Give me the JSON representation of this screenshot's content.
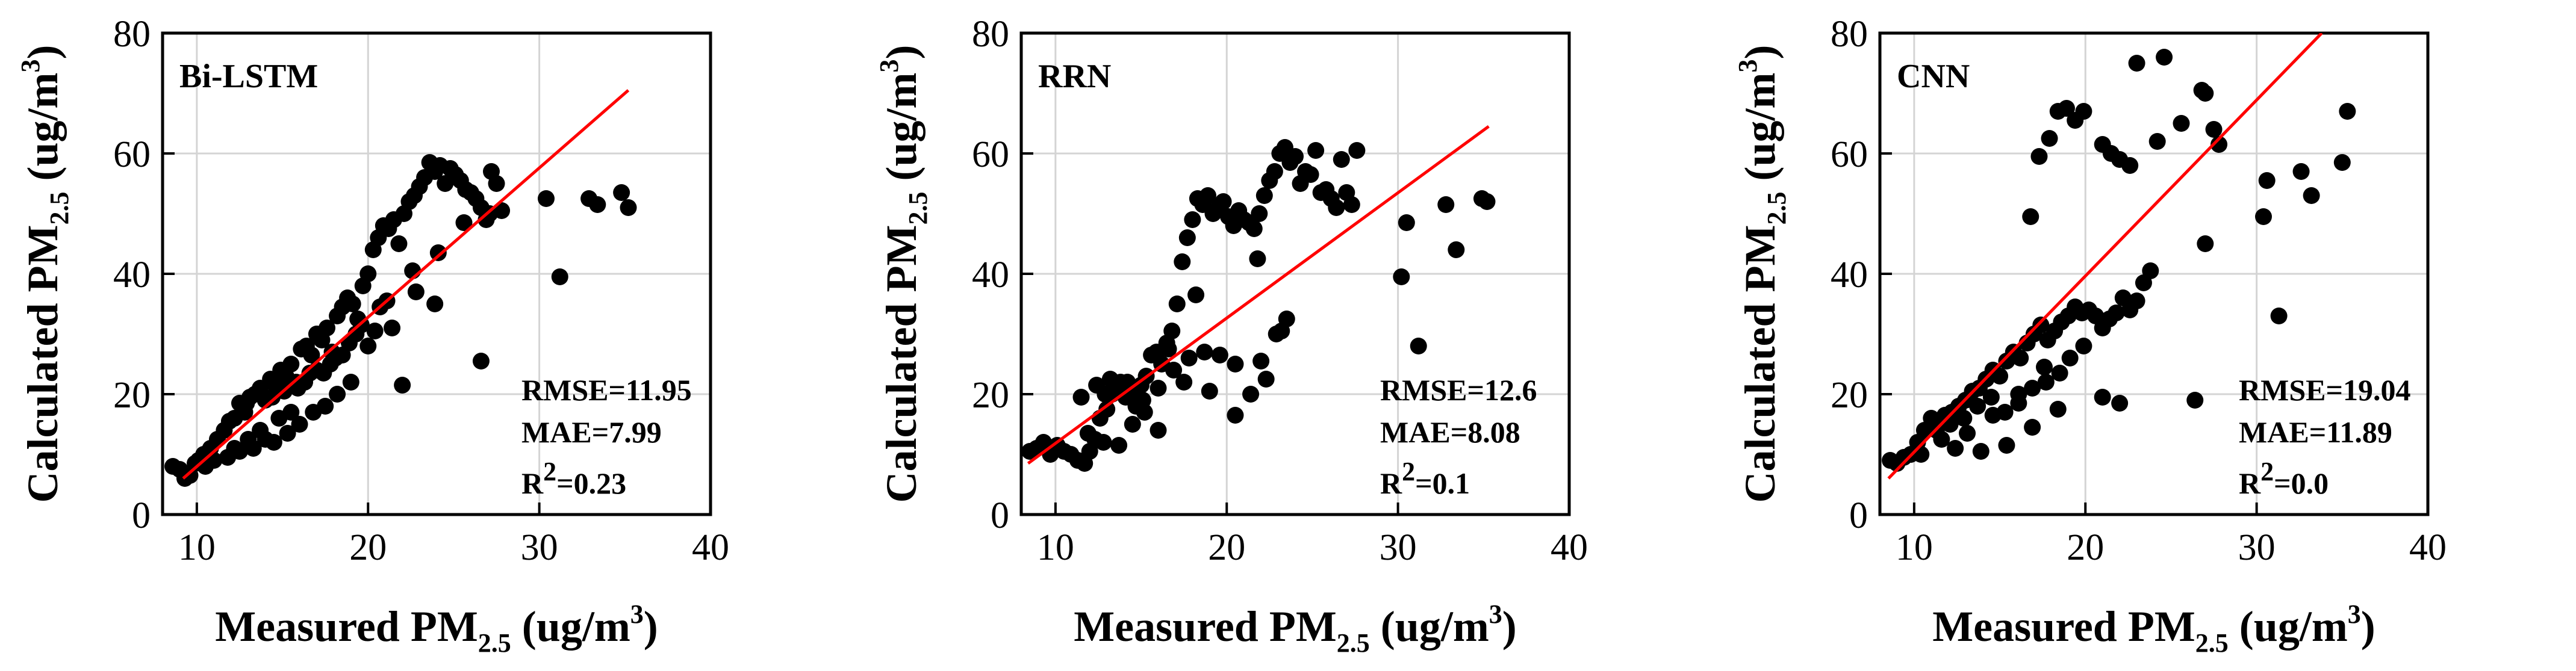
{
  "figure": {
    "accent_color": "#ff0000",
    "point_color": "#000000"
  },
  "chart_data": [
    {
      "type": "scatter",
      "title": "Bi-LSTM",
      "xlabel": {
        "main": "Measured PM",
        "sub": "2.5",
        "unit_pre": " (ug/m",
        "unit_sup": "3",
        "unit_post": ")"
      },
      "ylabel": {
        "main": "Calculated PM",
        "sub": "2.5",
        "unit_pre": " (ug/m",
        "unit_sup": "3",
        "unit_post": ")"
      },
      "xlim": [
        8,
        40
      ],
      "ylim": [
        0,
        80
      ],
      "xticks": [
        "10",
        "20",
        "30",
        "40"
      ],
      "yticks": [
        "0",
        "20",
        "40",
        "60",
        "80"
      ],
      "grid": true,
      "stats": {
        "rmse": "RMSE=11.95",
        "mae": "MAE=7.99",
        "r2_pre": "R",
        "r2_sup": "2",
        "r2_post": "=0.23"
      },
      "fit_line": {
        "x": [
          9.2,
          35.2
        ],
        "y": [
          6,
          70.5
        ]
      },
      "x": [
        8.6,
        9.0,
        9.3,
        9.6,
        9.9,
        10.1,
        10.4,
        10.8,
        11.2,
        11.6,
        11.9,
        12.2,
        12.5,
        12.8,
        13.1,
        13.4,
        13.7,
        14.0,
        14.3,
        14.6,
        14.9,
        15.2,
        15.5,
        15.8,
        16.1,
        16.4,
        16.7,
        17.0,
        17.3,
        17.6,
        17.9,
        18.2,
        18.5,
        18.8,
        19.1,
        19.4,
        19.7,
        20.0,
        20.3,
        20.6,
        20.9,
        21.2,
        21.5,
        21.8,
        22.1,
        22.4,
        22.7,
        23.0,
        23.3,
        23.6,
        23.9,
        24.2,
        24.5,
        24.8,
        25.1,
        25.4,
        25.7,
        26.0,
        26.3,
        26.6,
        26.9,
        27.2,
        27.5,
        27.8,
        30.4,
        31.2,
        32.9,
        33.4,
        34.8,
        35.2,
        22.0,
        23.9,
        26.6,
        12.2,
        13.0,
        13.7,
        14.5,
        15.3,
        16.0,
        16.8,
        17.5,
        18.2,
        19.0,
        11.0,
        12.5,
        14.0,
        15.5,
        17.0,
        18.5,
        20.0,
        21.4,
        22.8,
        10.5,
        11.8,
        13.3,
        14.8,
        16.3,
        17.8,
        19.3,
        20.7,
        15.1,
        16.6,
        18.1,
        19.6,
        21.1,
        22.6,
        24.1,
        25.6,
        27.1,
        12.9,
        14.4,
        15.9,
        17.4,
        18.9,
        20.4
      ],
      "y": [
        8.0,
        7.5,
        6.0,
        6.5,
        8.5,
        9.0,
        10.0,
        11.0,
        12.5,
        14.0,
        15.5,
        16.0,
        18.5,
        17.0,
        19.5,
        20.0,
        21.0,
        19.0,
        22.5,
        21.5,
        24.0,
        23.0,
        25.0,
        22.0,
        27.5,
        28.0,
        26.5,
        30.0,
        29.0,
        31.0,
        27.0,
        33.0,
        34.5,
        36.0,
        35.0,
        32.5,
        38.0,
        40.0,
        44.0,
        46.0,
        48.0,
        47.5,
        49.0,
        45.0,
        50.0,
        52.0,
        53.0,
        54.5,
        56.0,
        58.5,
        57.0,
        58.0,
        55.0,
        57.5,
        56.5,
        55.5,
        54.0,
        53.5,
        52.5,
        51.0,
        49.0,
        57.0,
        55.0,
        50.5,
        52.5,
        39.5,
        52.5,
        51.5,
        53.5,
        51.0,
        21.5,
        35.0,
        25.5,
        11.0,
        12.5,
        14.0,
        12.0,
        13.5,
        15.0,
        17.0,
        18.0,
        20.0,
        22.0,
        9.0,
        10.5,
        12.5,
        17.0,
        24.0,
        26.5,
        28.0,
        31.0,
        37.0,
        8.0,
        9.5,
        11.0,
        16.0,
        22.0,
        25.0,
        30.0,
        34.5,
        20.5,
        23.5,
        26.0,
        31.5,
        35.5,
        40.5,
        43.5,
        48.5,
        50.0,
        18.5,
        19.5,
        21.0,
        23.5,
        28.5,
        30.5
      ]
    },
    {
      "type": "scatter",
      "title": "RRN",
      "xlabel": {
        "main": "Measured PM",
        "sub": "2.5",
        "unit_pre": " (ug/m",
        "unit_sup": "3",
        "unit_post": ")"
      },
      "ylabel": {
        "main": "Calculated PM",
        "sub": "2.5",
        "unit_pre": " (ug/m",
        "unit_sup": "3",
        "unit_post": ")"
      },
      "xlim": [
        8,
        40
      ],
      "ylim": [
        0,
        80
      ],
      "xticks": [
        "10",
        "20",
        "30",
        "40"
      ],
      "yticks": [
        "0",
        "20",
        "40",
        "60",
        "80"
      ],
      "grid": true,
      "stats": {
        "rmse": "RMSE=12.6",
        "mae": "MAE=8.08",
        "r2_pre": "R",
        "r2_sup": "2",
        "r2_post": "=0.1"
      },
      "fit_line": {
        "x": [
          8.4,
          35.3
        ],
        "y": [
          8.5,
          64.5
        ]
      },
      "x": [
        8.5,
        8.9,
        9.3,
        9.7,
        10.1,
        10.5,
        10.9,
        11.3,
        11.7,
        12.0,
        12.3,
        12.6,
        12.9,
        13.2,
        13.5,
        13.8,
        14.1,
        14.4,
        14.7,
        15.0,
        15.3,
        15.6,
        15.9,
        16.2,
        16.5,
        16.8,
        17.1,
        17.4,
        17.7,
        18.0,
        18.3,
        18.6,
        18.9,
        19.2,
        19.5,
        19.8,
        20.1,
        20.4,
        20.7,
        21.0,
        21.3,
        21.6,
        21.9,
        22.2,
        22.5,
        22.8,
        23.1,
        23.4,
        23.7,
        24.0,
        24.3,
        24.6,
        24.9,
        25.2,
        25.5,
        25.8,
        26.1,
        26.4,
        26.7,
        27.0,
        27.3,
        27.6,
        30.2,
        30.5,
        31.2,
        32.8,
        33.4,
        34.9,
        35.2,
        11.5,
        12.4,
        13.3,
        14.2,
        15.1,
        16.0,
        16.9,
        17.8,
        18.7,
        19.6,
        20.5,
        21.4,
        22.3,
        23.2,
        13.0,
        14.5,
        16.0,
        17.5,
        19.0,
        20.5,
        22.0,
        23.5,
        11.9,
        12.8,
        13.7,
        15.2,
        16.6,
        18.2,
        21.8,
        22.9
      ],
      "y": [
        10.5,
        11.0,
        12.0,
        10.0,
        11.5,
        10.5,
        10.0,
        9.0,
        8.5,
        10.5,
        12.5,
        16.0,
        20.0,
        22.5,
        21.0,
        22.0,
        19.5,
        20.5,
        18.0,
        21.5,
        23.0,
        26.5,
        27.0,
        25.0,
        28.5,
        30.5,
        35.0,
        42.0,
        46.0,
        49.0,
        52.5,
        51.5,
        53.0,
        50.0,
        51.0,
        52.0,
        49.5,
        48.0,
        50.5,
        49.0,
        48.5,
        47.5,
        50.0,
        53.0,
        55.5,
        57.0,
        60.0,
        61.0,
        58.5,
        59.5,
        55.0,
        57.0,
        56.5,
        60.5,
        53.5,
        54.0,
        52.5,
        51.0,
        59.0,
        53.5,
        51.5,
        60.5,
        39.5,
        48.5,
        28.0,
        51.5,
        44.0,
        52.5,
        52.0,
        19.5,
        21.5,
        20.0,
        22.0,
        19.0,
        21.0,
        24.0,
        26.0,
        27.0,
        26.5,
        25.0,
        20.0,
        22.5,
        30.5,
        17.5,
        15.0,
        14.0,
        22.0,
        20.5,
        16.5,
        25.5,
        32.5,
        13.5,
        12.0,
        11.5,
        17.0,
        27.5,
        36.5,
        42.5,
        30.0
      ]
    },
    {
      "type": "scatter",
      "title": "CNN",
      "xlabel": {
        "main": "Measured PM",
        "sub": "2.5",
        "unit_pre": " (ug/m",
        "unit_sup": "3",
        "unit_post": ")"
      },
      "ylabel": {
        "main": "Calculated PM",
        "sub": "2.5",
        "unit_pre": " (ug/m",
        "unit_sup": "3",
        "unit_post": ")"
      },
      "xlim": [
        8,
        40
      ],
      "ylim": [
        0,
        80
      ],
      "xticks": [
        "10",
        "20",
        "30",
        "40"
      ],
      "yticks": [
        "0",
        "20",
        "40",
        "60",
        "80"
      ],
      "grid": true,
      "stats": {
        "rmse": "RMSE=19.04",
        "mae": "MAE=11.89",
        "r2_pre": "R",
        "r2_sup": "2",
        "r2_post": "=0.0"
      },
      "fit_line": {
        "x": [
          8.5,
          33.8
        ],
        "y": [
          6,
          80
        ]
      },
      "x": [
        8.6,
        9.0,
        9.4,
        9.8,
        10.2,
        10.6,
        11.0,
        11.4,
        11.8,
        12.2,
        12.6,
        13.0,
        13.4,
        13.8,
        14.2,
        14.6,
        15.0,
        15.4,
        15.8,
        16.2,
        16.6,
        17.0,
        17.4,
        17.8,
        18.2,
        18.6,
        19.0,
        19.4,
        19.8,
        20.2,
        20.6,
        21.0,
        21.4,
        21.8,
        22.2,
        22.6,
        23.0,
        23.4,
        23.8,
        24.2,
        16.8,
        17.3,
        17.9,
        18.4,
        18.9,
        19.4,
        19.9,
        21.0,
        21.5,
        22.0,
        22.6,
        23.0,
        24.6,
        25.6,
        26.8,
        27.0,
        27.5,
        27.8,
        30.4,
        30.6,
        31.3,
        32.6,
        33.2,
        35.0,
        35.3,
        21.0,
        22.0,
        26.4,
        27.0,
        11.3,
        12.1,
        12.9,
        13.7,
        14.5,
        15.3,
        16.1,
        16.9,
        17.7,
        18.5,
        10.4,
        11.6,
        13.1,
        14.6,
        16.1,
        17.6,
        19.1,
        12.4,
        13.9,
        15.4,
        16.9,
        18.4,
        19.9
      ],
      "y": [
        9.0,
        8.5,
        9.5,
        10.0,
        12.0,
        14.0,
        16.0,
        15.5,
        16.5,
        17.0,
        18.0,
        19.0,
        20.5,
        21.0,
        22.5,
        24.0,
        23.0,
        25.5,
        27.0,
        26.0,
        28.5,
        30.0,
        31.5,
        29.0,
        30.5,
        32.0,
        33.0,
        34.5,
        33.5,
        34.0,
        33.0,
        31.0,
        32.5,
        33.5,
        36.0,
        34.0,
        35.5,
        38.5,
        40.5,
        62.0,
        49.5,
        59.5,
        62.5,
        67.0,
        67.5,
        65.5,
        67.0,
        61.5,
        60.0,
        59.0,
        58.0,
        75.0,
        76.0,
        65.0,
        70.5,
        45.0,
        64.0,
        61.5,
        49.5,
        55.5,
        33.0,
        57.0,
        53.0,
        58.5,
        67.0,
        19.5,
        18.5,
        19.0,
        70.0,
        14.0,
        15.0,
        16.0,
        18.0,
        19.5,
        17.0,
        18.5,
        21.0,
        22.0,
        23.5,
        10.0,
        12.5,
        13.5,
        16.5,
        20.0,
        24.5,
        26.0,
        11.0,
        10.5,
        11.5,
        14.5,
        17.5,
        28.0
      ]
    }
  ]
}
